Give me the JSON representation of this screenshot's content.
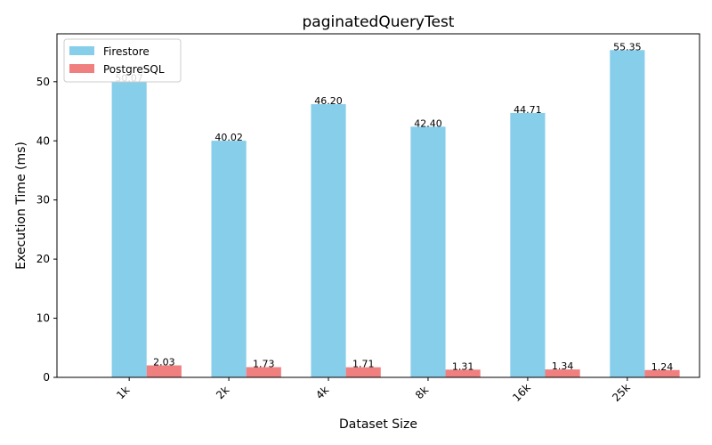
{
  "chart_data": {
    "type": "bar",
    "title": "paginatedQueryTest",
    "xlabel": "Dataset Size",
    "ylabel": "Execution Time (ms)",
    "categories": [
      "1k",
      "2k",
      "4k",
      "8k",
      "16k",
      "25k"
    ],
    "series": [
      {
        "name": "Firestore",
        "color": "#87ceeb",
        "values": [
          50.07,
          40.02,
          46.2,
          42.4,
          44.71,
          55.35
        ],
        "labels": [
          "50.07",
          "40.02",
          "46.20",
          "42.40",
          "44.71",
          "55.35"
        ]
      },
      {
        "name": "PostgreSQL",
        "color": "#f08080",
        "values": [
          2.03,
          1.73,
          1.71,
          1.31,
          1.34,
          1.24
        ],
        "labels": [
          "2.03",
          "1.73",
          "1.71",
          "1.31",
          "1.34",
          "1.24"
        ]
      }
    ],
    "ylim": [
      0,
      58.1
    ],
    "yticks": [
      0,
      10,
      20,
      30,
      40,
      50
    ],
    "grid": false,
    "legend": "top-left"
  }
}
